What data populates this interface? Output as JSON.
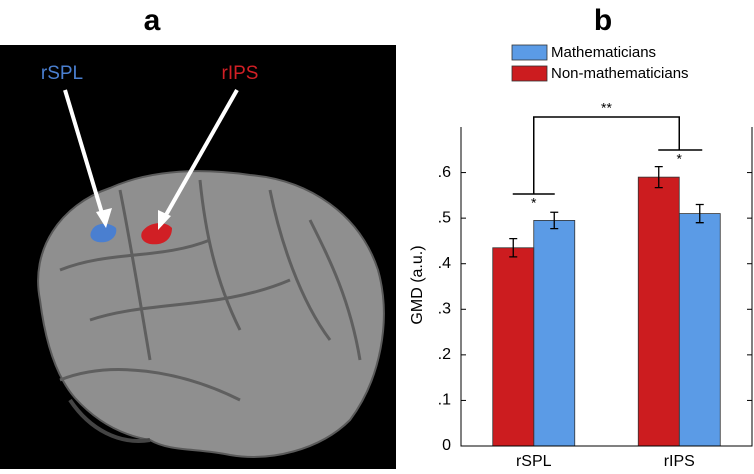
{
  "panel_a": {
    "label": "a",
    "regions": [
      {
        "name": "rSPL",
        "color": "#4a7fd0"
      },
      {
        "name": "rIPS",
        "color": "#d11f25"
      }
    ]
  },
  "chart_data": {
    "type": "bar",
    "panel_label": "b",
    "ylabel": "GMD (a.u.)",
    "categories": [
      "rSPL",
      "rIPS"
    ],
    "series": [
      {
        "name": "Mathematicians",
        "color": "#5b9be6",
        "values": [
          0.495,
          0.51
        ],
        "errors": [
          0.018,
          0.02
        ]
      },
      {
        "name": "Non-mathematicians",
        "color": "#cc1c1f",
        "values": [
          0.435,
          0.59
        ],
        "errors": [
          0.02,
          0.023
        ]
      }
    ],
    "ylim": [
      0,
      0.7
    ],
    "yticks": [
      0,
      {
        "value": 0.1,
        "label": ".1"
      },
      {
        "value": 0.2,
        "label": ".2"
      },
      {
        "value": 0.3,
        "label": ".3"
      },
      {
        "value": 0.4,
        "label": ".4"
      },
      {
        "value": 0.5,
        "label": ".5"
      },
      {
        "value": 0.6,
        "label": ".6"
      }
    ],
    "annotations": [
      "*",
      "*",
      "**"
    ]
  }
}
